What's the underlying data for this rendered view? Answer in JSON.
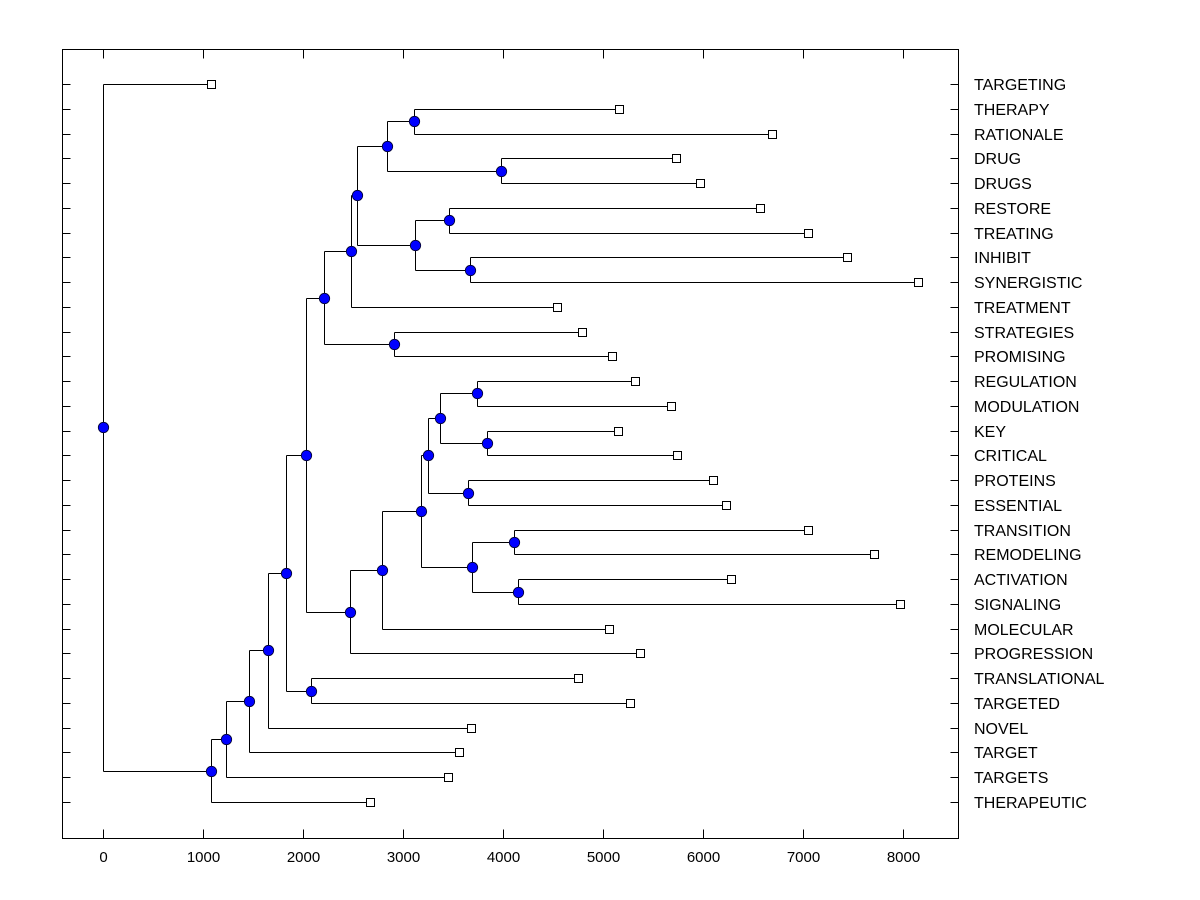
{
  "chart_data": {
    "type": "dendrogram",
    "title": "",
    "xlabel": "",
    "ylabel": "",
    "xlim": [
      -400,
      8560
    ],
    "xticks": [
      0,
      1000,
      2000,
      3000,
      4000,
      5000,
      6000,
      7000,
      8000
    ],
    "xtick_labels": [
      "0",
      "1000",
      "2000",
      "3000",
      "4000",
      "5000",
      "6000",
      "7000",
      "8000"
    ],
    "grid": false,
    "legend": "none",
    "colors": {
      "node": "#0000ff",
      "leaf": "#ffffff",
      "line": "#000000"
    },
    "leaves": [
      {
        "label": "TARGETING",
        "value": 1080
      },
      {
        "label": "THERAPY",
        "value": 5160
      },
      {
        "label": "RATIONALE",
        "value": 6690
      },
      {
        "label": "DRUG",
        "value": 5730
      },
      {
        "label": "DRUGS",
        "value": 5970
      },
      {
        "label": "RESTORE",
        "value": 6570
      },
      {
        "label": "TREATING",
        "value": 7050
      },
      {
        "label": "INHIBIT",
        "value": 7440
      },
      {
        "label": "SYNERGISTIC",
        "value": 8150
      },
      {
        "label": "TREATMENT",
        "value": 4540
      },
      {
        "label": "STRATEGIES",
        "value": 4790
      },
      {
        "label": "PROMISING",
        "value": 5090
      },
      {
        "label": "REGULATION",
        "value": 5320
      },
      {
        "label": "MODULATION",
        "value": 5680
      },
      {
        "label": "KEY",
        "value": 5150
      },
      {
        "label": "CRITICAL",
        "value": 5740
      },
      {
        "label": "PROTEINS",
        "value": 6100
      },
      {
        "label": "ESSENTIAL",
        "value": 6230
      },
      {
        "label": "TRANSITION",
        "value": 7050
      },
      {
        "label": "REMODELING",
        "value": 7710
      },
      {
        "label": "ACTIVATION",
        "value": 6280
      },
      {
        "label": "SIGNALING",
        "value": 7970
      },
      {
        "label": "MOLECULAR",
        "value": 5060
      },
      {
        "label": "PROGRESSION",
        "value": 5370
      },
      {
        "label": "TRANSLATIONAL",
        "value": 4750
      },
      {
        "label": "TARGETED",
        "value": 5270
      },
      {
        "label": "NOVEL",
        "value": 3680
      },
      {
        "label": "TARGET",
        "value": 3560
      },
      {
        "label": "TARGETS",
        "value": 3450
      },
      {
        "label": "THERAPEUTIC",
        "value": 2670
      }
    ],
    "merges": [
      {
        "id": "A",
        "value": 3110,
        "children": [
          "THERAPY",
          "RATIONALE"
        ]
      },
      {
        "id": "B",
        "value": 3980,
        "children": [
          "DRUG",
          "DRUGS"
        ]
      },
      {
        "id": "C",
        "value": 2840,
        "children": [
          "A",
          "B"
        ]
      },
      {
        "id": "D",
        "value": 3460,
        "children": [
          "RESTORE",
          "TREATING"
        ]
      },
      {
        "id": "E",
        "value": 3670,
        "children": [
          "INHIBIT",
          "SYNERGISTIC"
        ]
      },
      {
        "id": "F",
        "value": 3120,
        "children": [
          "D",
          "E"
        ]
      },
      {
        "id": "G",
        "value": 2540,
        "children": [
          "C",
          "F"
        ]
      },
      {
        "id": "H",
        "value": 2480,
        "children": [
          "G",
          "TREATMENT"
        ]
      },
      {
        "id": "I",
        "value": 2910,
        "children": [
          "STRATEGIES",
          "PROMISING"
        ]
      },
      {
        "id": "J",
        "value": 2210,
        "children": [
          "H",
          "I"
        ]
      },
      {
        "id": "K",
        "value": 3740,
        "children": [
          "REGULATION",
          "MODULATION"
        ]
      },
      {
        "id": "L",
        "value": 3840,
        "children": [
          "KEY",
          "CRITICAL"
        ]
      },
      {
        "id": "M",
        "value": 3370,
        "children": [
          "K",
          "L"
        ]
      },
      {
        "id": "N",
        "value": 3650,
        "children": [
          "PROTEINS",
          "ESSENTIAL"
        ]
      },
      {
        "id": "O",
        "value": 3250,
        "children": [
          "M",
          "N"
        ]
      },
      {
        "id": "P",
        "value": 4110,
        "children": [
          "TRANSITION",
          "REMODELING"
        ]
      },
      {
        "id": "Q",
        "value": 4150,
        "children": [
          "ACTIVATION",
          "SIGNALING"
        ]
      },
      {
        "id": "R",
        "value": 3690,
        "children": [
          "P",
          "Q"
        ]
      },
      {
        "id": "S",
        "value": 3180,
        "children": [
          "O",
          "R"
        ]
      },
      {
        "id": "T",
        "value": 2790,
        "children": [
          "S",
          "MOLECULAR"
        ]
      },
      {
        "id": "U",
        "value": 2470,
        "children": [
          "T",
          "PROGRESSION"
        ]
      },
      {
        "id": "V",
        "value": 2030,
        "children": [
          "J",
          "U"
        ]
      },
      {
        "id": "W",
        "value": 2080,
        "children": [
          "TRANSLATIONAL",
          "TARGETED"
        ]
      },
      {
        "id": "X",
        "value": 1830,
        "children": [
          "V",
          "W"
        ]
      },
      {
        "id": "Y",
        "value": 1650,
        "children": [
          "X",
          "NOVEL"
        ]
      },
      {
        "id": "Z",
        "value": 1460,
        "children": [
          "Y",
          "TARGET"
        ]
      },
      {
        "id": "AA",
        "value": 1230,
        "children": [
          "Z",
          "TARGETS"
        ]
      },
      {
        "id": "AB",
        "value": 1080,
        "children": [
          "AA",
          "THERAPEUTIC"
        ]
      },
      {
        "id": "ROOT",
        "value": 0,
        "children": [
          "TARGETING",
          "AB"
        ]
      }
    ]
  }
}
